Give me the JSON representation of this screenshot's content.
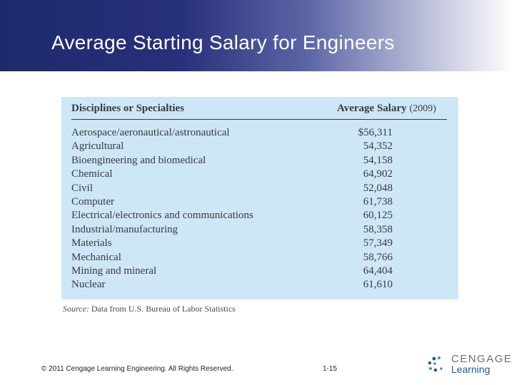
{
  "slide": {
    "title": "Average Starting Salary for Engineers"
  },
  "table": {
    "col_discipline": "Disciplines or Specialties",
    "col_salary": "Average Salary",
    "col_year": "(2009)",
    "rows": [
      {
        "discipline": "Aerospace/aeronautical/astronautical",
        "salary": "$56,311"
      },
      {
        "discipline": "Agricultural",
        "salary": "54,352"
      },
      {
        "discipline": "Bioengineering and biomedical",
        "salary": "54,158"
      },
      {
        "discipline": "Chemical",
        "salary": "64,902"
      },
      {
        "discipline": "Civil",
        "salary": "52,048"
      },
      {
        "discipline": "Computer",
        "salary": "61,738"
      },
      {
        "discipline": "Electrical/electronics and communications",
        "salary": "60,125"
      },
      {
        "discipline": "Industrial/manufacturing",
        "salary": "58,358"
      },
      {
        "discipline": "Materials",
        "salary": "57,349"
      },
      {
        "discipline": "Mechanical",
        "salary": "58,766"
      },
      {
        "discipline": "Mining and mineral",
        "salary": "64,404"
      },
      {
        "discipline": "Nuclear",
        "salary": "61,610"
      }
    ],
    "source_label": "Source:",
    "source_text": "Data from U.S. Bureau of Labor Statistics"
  },
  "footer": {
    "copyright": "© 2011 Cengage Learning Engineering. All Rights Reserved.",
    "page_number": "1-15",
    "logo_line1": "CENGAGE",
    "logo_line2": "Learning",
    "logo_colors": [
      "#1d5a9a",
      "#3a8fd0",
      "#6b7078"
    ]
  }
}
